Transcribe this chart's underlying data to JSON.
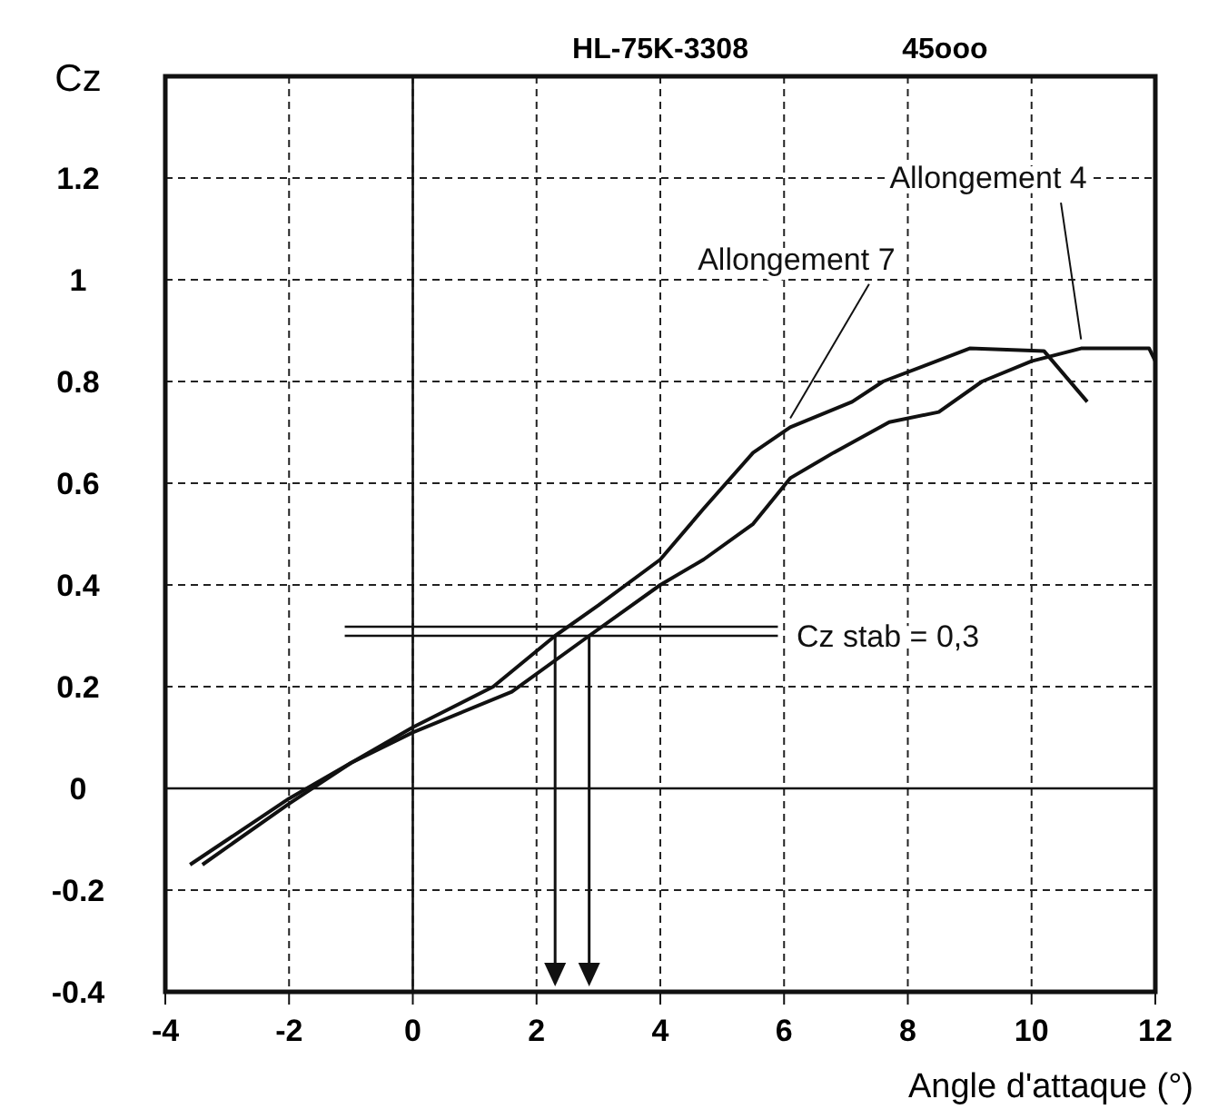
{
  "chart_data": {
    "type": "line",
    "title": "HL-75K-3308",
    "subtitle": "45ooo",
    "xlabel": "Angle d'attaque  (°)",
    "ylabel": "Cz",
    "x": [
      -3.6,
      -2,
      -1,
      0,
      1.3,
      2.3,
      3,
      4,
      4.7,
      5.5,
      6.1,
      7.1,
      7.6,
      9,
      10.2,
      10.9
    ],
    "series": [
      {
        "name": "Allongement 7",
        "color": "#111111",
        "values": [
          -0.15,
          -0.02,
          0.05,
          0.12,
          0.2,
          0.3,
          0.36,
          0.45,
          0.55,
          0.66,
          0.71,
          0.76,
          0.8,
          0.865,
          0.86,
          0.76
        ]
      },
      {
        "name": "Allongement 4",
        "color": "#111111",
        "x": [
          -3.4,
          -2,
          -1,
          0,
          1.6,
          2.85,
          4,
          4.7,
          5.5,
          6.1,
          6.8,
          7.7,
          8.5,
          9.2,
          10,
          10.8,
          11.9,
          12
        ],
        "values": [
          -0.15,
          -0.03,
          0.05,
          0.11,
          0.19,
          0.3,
          0.4,
          0.45,
          0.52,
          0.61,
          0.66,
          0.72,
          0.74,
          0.8,
          0.84,
          0.865,
          0.865,
          0.84
        ]
      }
    ],
    "ref_lines": [
      {
        "axis": "y",
        "value": 0.3,
        "label": "Cz stab = 0,3",
        "color": "#111111"
      },
      {
        "axis": "x",
        "value": 2.3,
        "color": "#111111"
      },
      {
        "axis": "x",
        "value": 2.85,
        "color": "#111111"
      }
    ],
    "xlim": [
      -4,
      12
    ],
    "ylim": [
      -0.4,
      1.4
    ],
    "xticks": [
      -4,
      -2,
      0,
      2,
      4,
      6,
      8,
      10,
      12
    ],
    "yticks": [
      -0.4,
      -0.2,
      0,
      0.2,
      0.4,
      0.6,
      0.8,
      1,
      1.2
    ],
    "grid": true,
    "marker": "none",
    "line_style": "solid"
  }
}
